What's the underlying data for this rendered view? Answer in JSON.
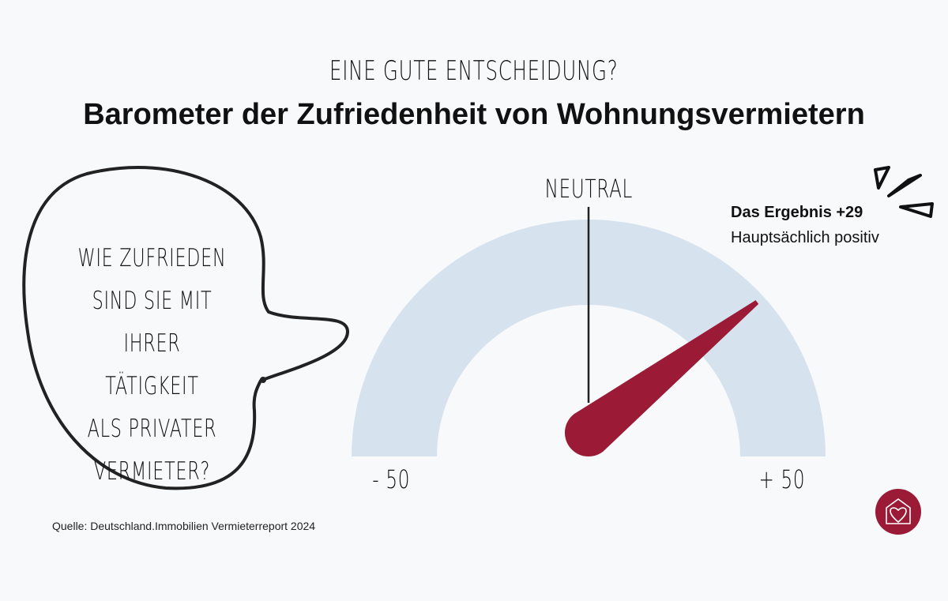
{
  "header": {
    "kicker": "EINE GUTE ENTSCHEIDUNG?",
    "title": "Barometer der Zufriedenheit von Wohnungsvermietern"
  },
  "bubble": {
    "lines": [
      "WIE ZUFRIEDEN",
      "SIND SIE MIT",
      "IHRER TÄTIGKEIT",
      "ALS PRIVATER",
      "VERMIETER?"
    ]
  },
  "chart_data": {
    "type": "gauge",
    "min": -50,
    "max": 50,
    "value": 29,
    "center_label": "NEUTRAL",
    "min_label": "- 50",
    "max_label": "+ 50",
    "result_title": "Das Ergebnis +29",
    "result_text": "Hauptsächlich positiv",
    "colors": {
      "arc": "#d6e3ef",
      "needle": "#9b1a35",
      "marker": "#222222"
    }
  },
  "footer": {
    "source": "Quelle: Deutschland.Immobilien Vermieterreport 2024",
    "logo_icon": "house-heart-icon",
    "logo_color": "#9b1a35"
  }
}
